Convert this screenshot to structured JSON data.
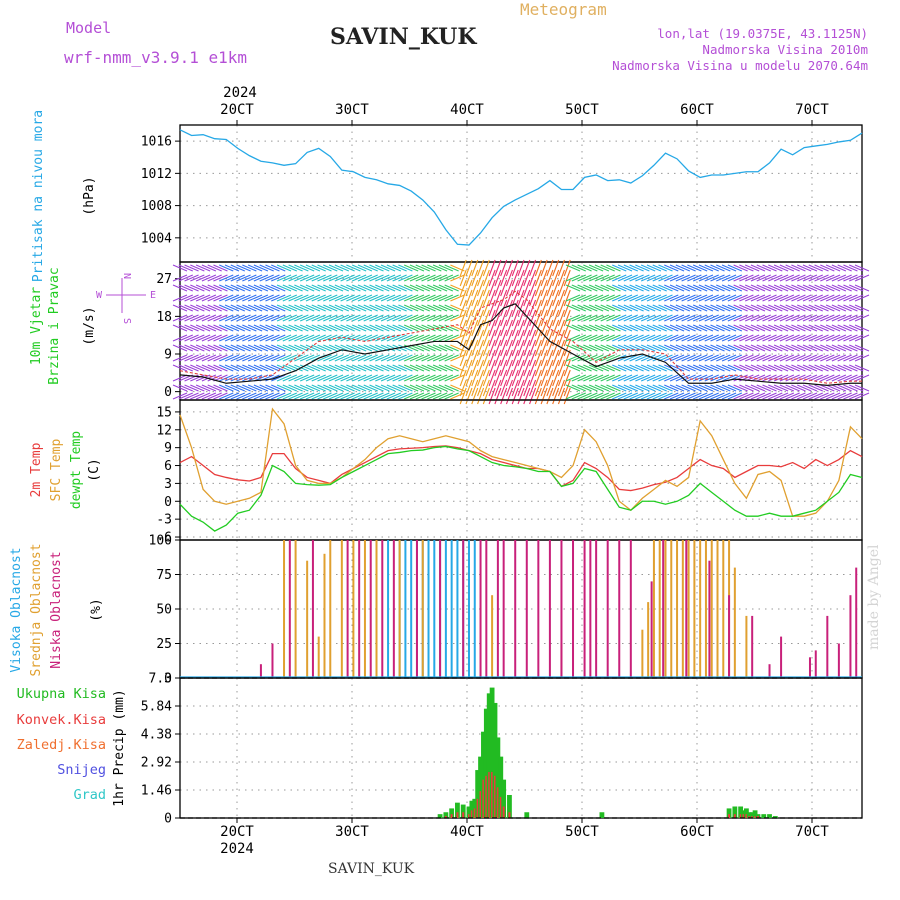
{
  "header": {
    "meteogram_label": "Meteogram",
    "model_label": "Model",
    "model_name": "wrf-nmm_v3.9.1  e1km",
    "station": "SAVIN_KUK",
    "coords": "lon,lat (19.0375E, 43.1125N)",
    "altitude": "Nadmorska Visina 2010m",
    "model_altitude": "Nadmorska Visina u modelu 2070.64m",
    "watermark": "made by Angel",
    "footer_station": "SAVIN_KUK"
  },
  "colors": {
    "pressure": "#26a8e6",
    "temp2m": "#e83c3c",
    "sfc": "#e0a030",
    "dewpt": "#22cc22",
    "high_cloud": "#26a8e6",
    "mid_cloud": "#e0a030",
    "low_cloud": "#c8207a",
    "total_precip": "#22bb22",
    "conv_precip": "#e83c3c",
    "header_purple": "#b44fd6",
    "header_gold": "#e0b060"
  },
  "chart_data": [
    {
      "id": "pressure",
      "type": "line",
      "ylabel": [
        "Pritisak na nivou mora",
        "(hPa)"
      ],
      "x_top_year": "2024",
      "x_top_ticks": [
        "20CT",
        "30CT",
        "40CT",
        "50CT",
        "60CT",
        "70CT"
      ],
      "ylim": [
        1001,
        1018
      ],
      "yticks": [
        1004,
        1008,
        1012,
        1016
      ],
      "grid": true,
      "x": [
        0,
        1,
        2,
        3,
        4,
        5,
        6,
        7,
        8,
        9,
        10,
        11,
        12,
        13,
        14,
        15,
        16,
        17,
        18,
        19,
        20,
        21,
        22,
        23,
        24,
        25,
        26,
        27,
        28,
        29,
        30,
        31,
        32,
        33,
        34,
        35,
        36,
        37,
        38,
        39,
        40,
        41,
        42,
        43,
        44,
        45,
        46,
        47,
        48,
        49,
        50,
        51,
        52,
        53,
        54,
        55,
        56,
        57,
        58,
        59
      ],
      "series": [
        {
          "values": [
            1017.4,
            1016.7,
            1016.8,
            1016.3,
            1016.2,
            1015.1,
            1014.2,
            1013.5,
            1013.3,
            1013.0,
            1013.2,
            1014.6,
            1015.1,
            1014.1,
            1012.4,
            1012.2,
            1011.5,
            1011.2,
            1010.7,
            1010.5,
            1009.8,
            1008.7,
            1007.2,
            1005.0,
            1003.2,
            1003.1,
            1004.6,
            1006.5,
            1007.9,
            1008.7,
            1009.4,
            1010.1,
            1011.1,
            1010.0,
            1010.0,
            1011.5,
            1011.8,
            1011.1,
            1011.2,
            1010.8,
            1011.7,
            1013.0,
            1014.5,
            1013.8,
            1012.3,
            1011.5,
            1011.8,
            1011.8,
            1012.0,
            1012.2,
            1012.2,
            1013.3,
            1015.0,
            1014.3,
            1015.2,
            1015.4,
            1015.6,
            1015.9,
            1016.1,
            1017.0
          ]
        }
      ]
    },
    {
      "id": "wind",
      "type": "line",
      "ylabel": [
        "10m Vjetar",
        "Brzina i Pravac",
        "(m/s)"
      ],
      "ylim": [
        -2,
        31
      ],
      "yticks": [
        0,
        9,
        18,
        27
      ],
      "grid": true,
      "compass": {
        "n": "N",
        "s": "S",
        "w": "W",
        "e": "E"
      },
      "x": [
        0,
        2,
        4,
        6,
        8,
        10,
        12,
        14,
        16,
        18,
        20,
        22,
        24,
        25,
        26,
        27,
        28,
        29,
        30,
        32,
        34,
        36,
        38,
        40,
        42,
        44,
        46,
        48,
        50,
        52,
        54,
        56,
        58,
        59
      ],
      "series": [
        {
          "values": [
            4,
            3.5,
            2,
            2.5,
            3,
            5,
            8,
            10,
            9,
            10,
            11,
            12,
            12,
            10,
            16,
            17,
            20,
            21,
            18,
            12,
            9,
            6,
            8,
            9,
            7,
            2,
            2,
            3,
            2.5,
            2,
            2,
            1.5,
            2,
            2
          ]
        },
        {
          "values": [
            5,
            4,
            3,
            3,
            4,
            8,
            12,
            13,
            12,
            13,
            14,
            15,
            16,
            14,
            20,
            21,
            22,
            24,
            22,
            15,
            12,
            7,
            10,
            10,
            9,
            3,
            3,
            4,
            3,
            3,
            3,
            2,
            2.5,
            2.5
          ]
        }
      ]
    },
    {
      "id": "temperature",
      "type": "line",
      "ylabel": [
        "2m Temp",
        "SFC Temp",
        "dewpt Temp",
        "(C)"
      ],
      "ylim": [
        -6.5,
        17
      ],
      "yticks": [
        -6,
        -3,
        0,
        3,
        6,
        9,
        12,
        15
      ],
      "grid": true,
      "x": [
        0,
        1,
        2,
        3,
        4,
        5,
        6,
        7,
        8,
        9,
        10,
        11,
        12,
        13,
        14,
        15,
        16,
        17,
        18,
        19,
        20,
        21,
        22,
        23,
        24,
        25,
        26,
        27,
        28,
        29,
        30,
        31,
        32,
        33,
        34,
        35,
        36,
        37,
        38,
        39,
        40,
        41,
        42,
        43,
        44,
        45,
        46,
        47,
        48,
        49,
        50,
        51,
        52,
        53,
        54,
        55,
        56,
        57,
        58,
        59
      ],
      "series": [
        {
          "values": [
            6.5,
            7.5,
            6.0,
            4.5,
            4.0,
            3.6,
            3.4,
            4.0,
            8.0,
            8.0,
            5.5,
            4.0,
            3.5,
            3.0,
            4.5,
            5.5,
            6.5,
            7.5,
            8.5,
            8.8,
            8.9,
            9.0,
            9.2,
            9.3,
            9.0,
            8.5,
            8.0,
            7.0,
            6.5,
            6.0,
            5.5,
            5.5,
            5.0,
            2.5,
            3.5,
            6.5,
            5.5,
            4.0,
            2.0,
            1.8,
            2.2,
            2.8,
            3.2,
            4.0,
            5.5,
            7.0,
            6.0,
            5.5,
            4.0,
            5.0,
            6.0,
            6.0,
            5.8,
            6.5,
            5.5,
            7.0,
            6.0,
            7.0,
            8.5,
            7.5
          ]
        },
        {
          "values": [
            14.5,
            9.0,
            2.0,
            0.0,
            -0.5,
            0.0,
            0.5,
            1.5,
            15.5,
            13.0,
            6.0,
            3.5,
            3.0,
            3.0,
            4.0,
            5.5,
            7.0,
            9.0,
            10.5,
            11.0,
            10.5,
            10.0,
            10.5,
            11.0,
            10.5,
            10.0,
            8.5,
            7.5,
            7.0,
            6.5,
            6.0,
            5.5,
            5.0,
            4.0,
            6.0,
            12.0,
            10.0,
            6.0,
            0.0,
            -1.5,
            0.5,
            2.0,
            3.5,
            2.5,
            4.0,
            13.5,
            11.0,
            7.0,
            3.0,
            0.5,
            4.5,
            5.0,
            3.5,
            -2.5,
            -2.5,
            -2.0,
            0.0,
            3.5,
            12.5,
            10.5
          ]
        },
        {
          "values": [
            -0.5,
            -2.5,
            -3.5,
            -5.0,
            -4.0,
            -2.0,
            -1.5,
            1.0,
            6.0,
            5.0,
            3.0,
            2.8,
            2.7,
            2.8,
            4.0,
            5.0,
            6.0,
            7.0,
            8.0,
            8.2,
            8.5,
            8.6,
            9.0,
            9.2,
            8.8,
            8.5,
            7.5,
            6.5,
            6.0,
            5.8,
            5.5,
            5.0,
            5.0,
            2.5,
            3.0,
            5.5,
            5.0,
            2.0,
            -1.0,
            -1.5,
            0.0,
            0.0,
            -0.5,
            0.0,
            1.0,
            3.0,
            1.5,
            0.0,
            -1.5,
            -2.5,
            -2.5,
            -2.0,
            -2.5,
            -2.5,
            -2.0,
            -1.5,
            0.0,
            1.5,
            4.5,
            4.0
          ]
        }
      ]
    },
    {
      "id": "cloud",
      "type": "bar",
      "ylabel": [
        "Visoka Oblacnost",
        "Srednja Oblacnost",
        "Niska Oblacnost",
        "(%)"
      ],
      "ylim": [
        0,
        100
      ],
      "yticks": [
        0,
        25,
        50,
        75,
        100
      ],
      "grid": true,
      "series": [
        {
          "name": "Visoka Oblacnost",
          "x": [
            17,
            18,
            19,
            19.5,
            20,
            20.5,
            21,
            21.5,
            22,
            22.5,
            23,
            23.5,
            24,
            24.5,
            25,
            25.5,
            42
          ],
          "values": [
            100,
            100,
            100,
            100,
            100,
            100,
            100,
            100,
            100,
            100,
            100,
            100,
            100,
            100,
            100,
            100,
            70
          ]
        },
        {
          "name": "Srednja Oblacnost",
          "x": [
            9,
            10,
            11,
            12,
            12.5,
            13,
            14,
            15,
            16,
            17,
            19,
            21,
            27,
            33,
            40,
            40.5,
            41,
            41.5,
            42,
            42.5,
            43,
            43.5,
            44,
            44.5,
            45,
            45.5,
            46,
            46.5,
            47,
            47.5,
            48,
            49
          ],
          "values": [
            100,
            100,
            85,
            30,
            90,
            100,
            100,
            100,
            100,
            100,
            100,
            100,
            60,
            25,
            35,
            55,
            100,
            100,
            100,
            100,
            100,
            100,
            100,
            100,
            100,
            100,
            100,
            100,
            100,
            100,
            80,
            45
          ]
        },
        {
          "name": "Niska Oblacnost",
          "x": [
            7,
            8,
            9.5,
            11.5,
            14.5,
            15.5,
            16.5,
            17.5,
            18.5,
            20.5,
            22.5,
            24.5,
            26,
            26.5,
            27.5,
            28,
            29,
            30,
            31,
            32,
            33,
            34,
            35,
            35.5,
            36,
            37,
            38,
            39,
            40.8,
            41.8,
            43.8,
            45.8,
            47.5,
            49.5,
            51,
            52,
            54.5,
            55,
            56,
            57,
            58,
            58.5
          ],
          "values": [
            10,
            25,
            100,
            100,
            100,
            100,
            100,
            100,
            100,
            100,
            100,
            100,
            100,
            100,
            100,
            100,
            100,
            100,
            100,
            100,
            100,
            100,
            100,
            100,
            100,
            100,
            100,
            100,
            70,
            100,
            100,
            85,
            60,
            45,
            10,
            30,
            15,
            20,
            45,
            25,
            60,
            80
          ]
        }
      ]
    },
    {
      "id": "precip",
      "type": "bar",
      "ylabel": [
        "Ukupna Kisa",
        "Konvek.Kisa",
        "Zaledj.Kisa",
        "Snijeg",
        "Grad",
        "1hr Precip (mm)"
      ],
      "x_bottom_ticks": [
        "20CT",
        "30CT",
        "40CT",
        "50CT",
        "60CT",
        "70CT"
      ],
      "x_bottom_year": "2024",
      "ylim": [
        0,
        7.3
      ],
      "yticks": [
        "0",
        "1.46",
        "2.92",
        "4.38",
        "5.84",
        "7.3"
      ],
      "grid": true,
      "x": [
        22.5,
        23,
        23.5,
        24,
        24.5,
        25,
        25.25,
        25.5,
        25.75,
        26,
        26.25,
        26.5,
        26.75,
        27,
        27.25,
        27.5,
        27.75,
        28,
        28.5,
        30,
        36.5,
        47.5,
        48,
        48.5,
        48.75,
        49,
        49.25,
        49.5,
        49.75,
        50,
        50.5,
        51,
        51.5
      ],
      "series": [
        {
          "name": "Ukupna Kisa",
          "values": [
            0.2,
            0.3,
            0.5,
            0.8,
            0.7,
            0.6,
            0.9,
            1.0,
            2.5,
            3.2,
            4.5,
            5.7,
            6.5,
            6.8,
            6.0,
            4.2,
            3.2,
            2.0,
            1.2,
            0.3,
            0.3,
            0.5,
            0.6,
            0.6,
            0.4,
            0.5,
            0.3,
            0.3,
            0.4,
            0.2,
            0.2,
            0.2,
            0.1
          ]
        },
        {
          "name": "Konvek.Kisa",
          "values": [
            0.0,
            0.1,
            0.2,
            0.3,
            0.3,
            0.2,
            0.4,
            0.5,
            1.0,
            1.4,
            2.0,
            2.2,
            2.4,
            2.4,
            2.2,
            1.6,
            1.1,
            0.6,
            0.3,
            0.0,
            0.0,
            0.2,
            0.2,
            0.2,
            0.2,
            0.2,
            0.1,
            0.1,
            0.1,
            0.1,
            0.0,
            0.0,
            0.0
          ]
        }
      ]
    }
  ]
}
